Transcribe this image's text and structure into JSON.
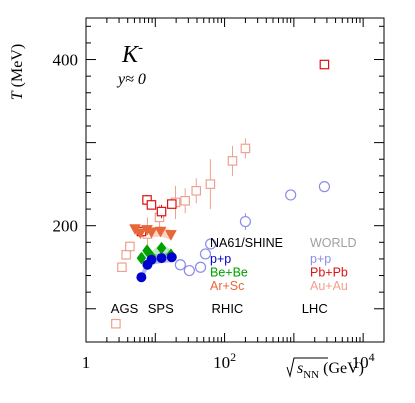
{
  "chart_data": {
    "type": "scatter",
    "xscale": "log",
    "xlim": [
      1,
      20000
    ],
    "ylim": [
      60,
      450
    ],
    "x_ticks": [
      {
        "v": 1,
        "label": "1"
      },
      {
        "v": 100,
        "label": "10",
        "sup": "2"
      },
      {
        "v": 10000,
        "label": "10",
        "sup": "4"
      }
    ],
    "y_ticks": [
      {
        "v": 200,
        "label": "200"
      },
      {
        "v": 400,
        "label": "400"
      }
    ],
    "ylabel": {
      "main": "T",
      "unit": " (MeV)"
    },
    "xlabel": {
      "sub": "NN",
      "unit": " (GeV)"
    },
    "particle": {
      "symbol": "K",
      "sup": "-"
    },
    "rapidity": "y≈ 0",
    "regions": [
      {
        "label": "AGS",
        "x": 3.6
      },
      {
        "label": "SPS",
        "x": 12
      },
      {
        "label": "RHIC",
        "x": 110
      },
      {
        "label": "LHC",
        "x": 2000
      }
    ],
    "legend": {
      "left_title": "NA61/SHINE",
      "right_title": "WORLD",
      "left": [
        {
          "label": "p+p",
          "color": "#0000cc"
        },
        {
          "label": "Be+Be",
          "color": "#00a000"
        },
        {
          "label": "Ar+Sc",
          "color": "#e8673a"
        }
      ],
      "right": [
        {
          "label": "p+p",
          "color": "#8c8ce8"
        },
        {
          "label": "Pb+Pb",
          "color": "#dd1111"
        },
        {
          "label": "Au+Au",
          "color": "#f0a090"
        }
      ],
      "title_color_left": "#000000",
      "title_color_right": "#a0a0a0"
    },
    "series": [
      {
        "name": "Au+Au",
        "marker": "square-open",
        "color": "#f0a090",
        "points": [
          [
            2.7,
            82,
            0
          ],
          [
            3.3,
            150,
            5
          ],
          [
            3.8,
            165,
            6
          ],
          [
            4.3,
            175,
            6
          ],
          [
            7.7,
            190,
            20
          ],
          [
            11.5,
            210,
            15
          ],
          [
            19.6,
            228,
            20
          ],
          [
            27,
            230,
            15
          ],
          [
            39,
            242,
            15
          ],
          [
            62.4,
            250,
            30
          ],
          [
            130,
            278,
            18
          ],
          [
            200,
            293,
            12
          ]
        ]
      },
      {
        "name": "Pb+Pb",
        "marker": "square-open",
        "color": "#dd1111",
        "points": [
          [
            6.3,
            193,
            5
          ],
          [
            7.6,
            231,
            6
          ],
          [
            8.8,
            225,
            5
          ],
          [
            12.3,
            217,
            8
          ],
          [
            17.3,
            226,
            5
          ],
          [
            2760,
            394,
            0
          ]
        ]
      },
      {
        "name": "Ar+Sc",
        "marker": "triangle-down",
        "color": "#e8673a",
        "points": [
          [
            5.1,
            196,
            3
          ],
          [
            6.1,
            191,
            3
          ],
          [
            7.6,
            195,
            3
          ],
          [
            8.8,
            192,
            3
          ],
          [
            11.9,
            193,
            4
          ],
          [
            16.8,
            189,
            4
          ]
        ]
      },
      {
        "name": "Be+Be",
        "marker": "diamond",
        "color": "#00a000",
        "points": [
          [
            6.3,
            161,
            3
          ],
          [
            7.6,
            170,
            4
          ],
          [
            8.8,
            163,
            4
          ],
          [
            12.3,
            173,
            5
          ],
          [
            16.8,
            165,
            4
          ]
        ]
      },
      {
        "name": "p+p NA61",
        "marker": "circle",
        "color": "#0000cc",
        "points": [
          [
            6.3,
            138,
            3
          ],
          [
            7.7,
            153,
            4
          ],
          [
            8.8,
            159,
            4
          ],
          [
            12.3,
            161,
            5
          ],
          [
            17.3,
            162,
            5
          ]
        ]
      },
      {
        "name": "p+p World",
        "marker": "circle-open",
        "color": "#8c8ce8",
        "points": [
          [
            23,
            153,
            0
          ],
          [
            31,
            146,
            0
          ],
          [
            45,
            150,
            0
          ],
          [
            53,
            166,
            0
          ],
          [
            63,
            178,
            0
          ],
          [
            200,
            205,
            10
          ],
          [
            900,
            237,
            0
          ],
          [
            2760,
            247,
            0
          ]
        ]
      }
    ]
  }
}
